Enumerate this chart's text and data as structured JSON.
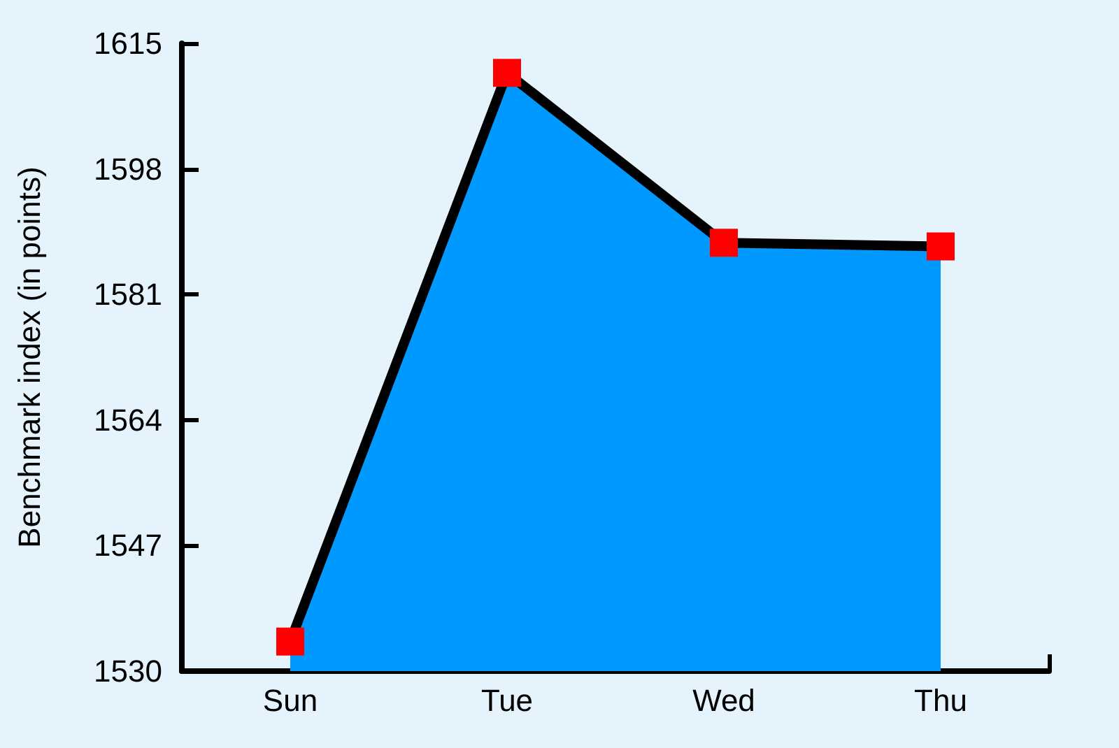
{
  "chart_data": {
    "type": "area",
    "ylabel": "Benchmark index (in points)",
    "categories": [
      "Sun",
      "Tue",
      "Wed",
      "Thu"
    ],
    "series": [
      {
        "color": "#0099ff",
        "values": [
          1534,
          1611,
          1588,
          1587.5
        ]
      }
    ],
    "ylim": [
      1530,
      1615
    ],
    "yticks": [
      1530,
      1547,
      1564,
      1581,
      1598,
      1615
    ],
    "grid": false,
    "marker": "square",
    "line_style": "solid"
  }
}
